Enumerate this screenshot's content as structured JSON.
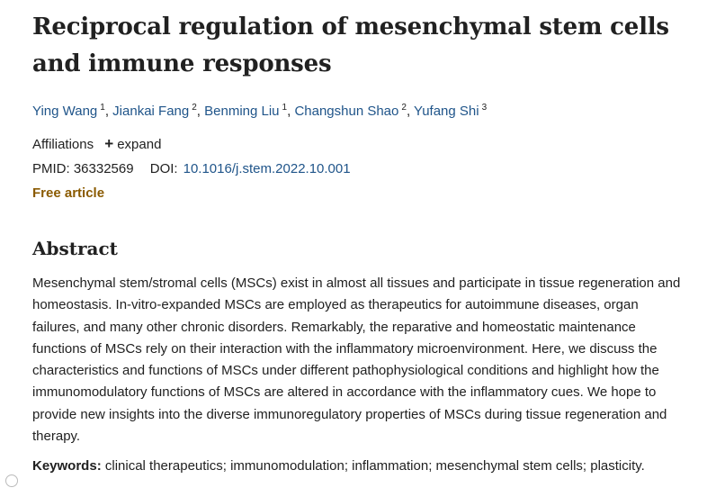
{
  "article": {
    "title": "Reciprocal regulation of mesenchymal stem cells and immune responses",
    "authors": [
      {
        "name": "Ying Wang",
        "aff": "1"
      },
      {
        "name": "Jiankai Fang",
        "aff": "2"
      },
      {
        "name": "Benming Liu",
        "aff": "1"
      },
      {
        "name": "Changshun Shao",
        "aff": "2"
      },
      {
        "name": "Yufang Shi",
        "aff": "3"
      }
    ],
    "author_separator": ", ",
    "affiliations_label": "Affiliations",
    "expand_label": "expand",
    "pmid_label": "PMID:",
    "pmid": "36332569",
    "doi_label": "DOI:",
    "doi": "10.1016/j.stem.2022.10.001",
    "free_label": "Free article"
  },
  "abstract": {
    "heading": "Abstract",
    "text": "Mesenchymal stem/stromal cells (MSCs) exist in almost all tissues and participate in tissue regeneration and homeostasis. In-vitro-expanded MSCs are employed as therapeutics for autoimmune diseases, organ failures, and many other chronic disorders. Remarkably, the reparative and homeostatic maintenance functions of MSCs rely on their interaction with the inflammatory microenvironment. Here, we discuss the characteristics and functions of MSCs under different pathophysiological conditions and highlight how the immunomodulatory functions of MSCs are altered in accordance with the inflammatory cues. We hope to provide new insights into the diverse immunoregulatory properties of MSCs during tissue regeneration and therapy."
  },
  "keywords": {
    "label": "Keywords:",
    "text": "clinical therapeutics; immunomodulation; inflammation; mesenchymal stem cells; plasticity."
  }
}
